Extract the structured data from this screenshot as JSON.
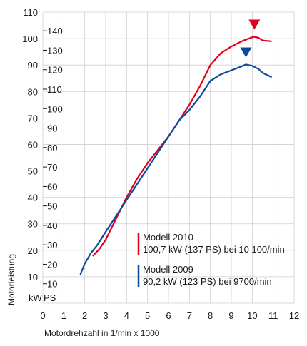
{
  "chart_data": {
    "type": "line",
    "xlabel": "Motordrehzahl in 1/min x 1000",
    "ylabel": "Motorleistung",
    "kw_unit": "kW",
    "ps_unit": "PS",
    "xlim": [
      0,
      12
    ],
    "ylim_kw": [
      0,
      110
    ],
    "x_ticks": [
      "0",
      "1",
      "2",
      "3",
      "4",
      "5",
      "6",
      "7",
      "8",
      "9",
      "10",
      "11",
      "12"
    ],
    "kw_ticks": [
      "10",
      "20",
      "30",
      "40",
      "50",
      "60",
      "70",
      "80",
      "90",
      "100",
      "110"
    ],
    "ps_ticks": [
      "10",
      "20",
      "30",
      "40",
      "50",
      "60",
      "70",
      "80",
      "90",
      "100",
      "110",
      "120",
      "130",
      "140"
    ],
    "grid": true,
    "series": [
      {
        "name": "Modell 2010",
        "label": "100,7 kW (137 PS) bei 10 100/min",
        "color": "#e3001b",
        "x": [
          2.4,
          2.7,
          3.0,
          3.5,
          4.0,
          4.5,
          5.0,
          5.5,
          6.0,
          6.5,
          7.0,
          7.5,
          8.0,
          8.5,
          9.0,
          9.5,
          10.0,
          10.1,
          10.3,
          10.5,
          10.9
        ],
        "y": [
          18,
          20.5,
          24,
          32,
          40,
          47,
          53,
          58,
          63,
          69,
          75,
          82,
          90,
          94.5,
          97,
          99,
          100.5,
          100.7,
          100.3,
          99.3,
          99
        ]
      },
      {
        "name": "Modell 2009",
        "label": "90,2 kW (123 PS) bei 9700/min",
        "color": "#0a4c9a",
        "x": [
          1.8,
          2.0,
          2.3,
          2.6,
          3.0,
          3.5,
          4.0,
          4.5,
          5.0,
          5.5,
          6.0,
          6.5,
          7.0,
          7.5,
          8.0,
          8.5,
          9.0,
          9.5,
          9.7,
          10.0,
          10.3,
          10.5,
          10.9
        ],
        "y": [
          11,
          15,
          19,
          22,
          27,
          33,
          39,
          45,
          51,
          57,
          63,
          69,
          73,
          78,
          84,
          86.5,
          88,
          89.5,
          90.2,
          89.7,
          88.5,
          87,
          85.5
        ]
      }
    ]
  }
}
